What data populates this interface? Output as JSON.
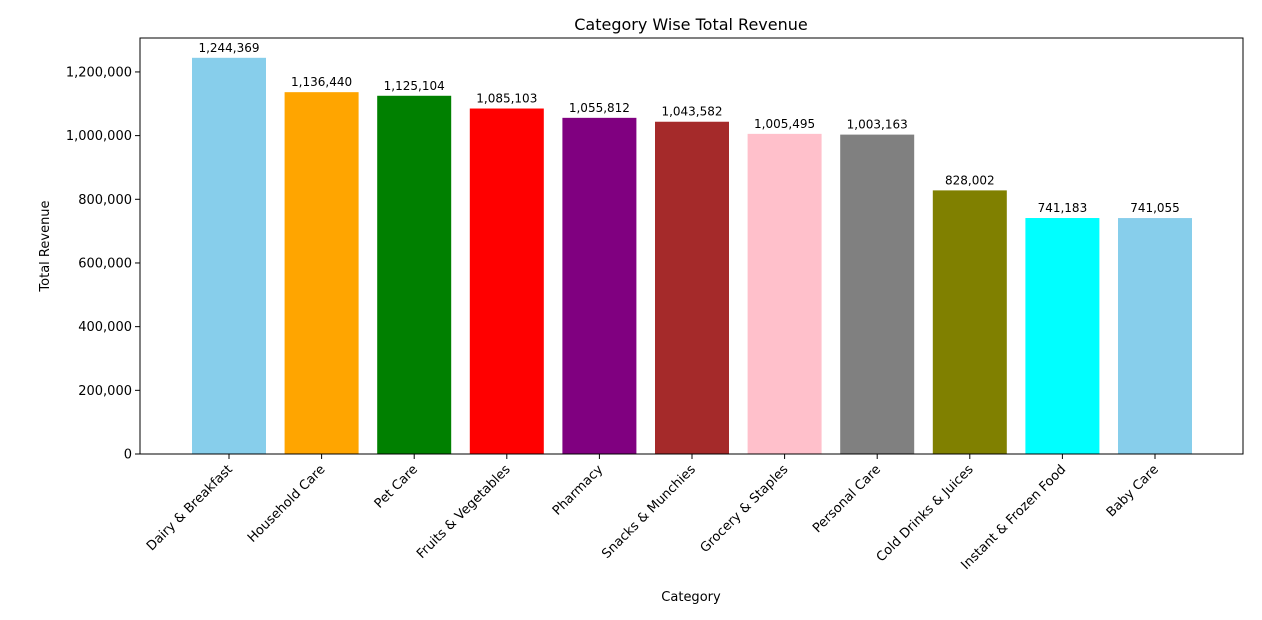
{
  "chart_data": {
    "type": "bar",
    "title": "Category Wise Total Revenue",
    "xlabel": "Category",
    "ylabel": "Total Revenue",
    "categories": [
      "Dairy & Breakfast",
      "Household Care",
      "Pet Care",
      "Fruits & Vegetables",
      "Pharmacy",
      "Snacks & Munchies",
      "Grocery & Staples",
      "Personal Care",
      "Cold Drinks & Juices",
      "Instant & Frozen Food",
      "Baby Care"
    ],
    "values": [
      1244369,
      1136440,
      1125104,
      1085103,
      1055812,
      1043582,
      1005495,
      1003163,
      828002,
      741183,
      741055
    ],
    "value_labels": [
      "1,244,369",
      "1,136,440",
      "1,125,104",
      "1,085,103",
      "1,055,812",
      "1,043,582",
      "1,005,495",
      "1,003,163",
      "828,002",
      "741,183",
      "741,055"
    ],
    "colors": [
      "#87CEEB",
      "#FFA500",
      "#008000",
      "#FF0000",
      "#800080",
      "#A52A2A",
      "#FFC0CB",
      "#808080",
      "#808000",
      "#00FFFF",
      "#87CEEB"
    ],
    "ylim": [
      0,
      1306588
    ],
    "yticks": [
      0,
      200000,
      400000,
      600000,
      800000,
      1000000,
      1200000
    ],
    "ytick_labels": [
      "0",
      "200,000",
      "400,000",
      "600,000",
      "800,000",
      "1,000,000",
      "1,200,000"
    ],
    "grid": false,
    "legend": false
  }
}
